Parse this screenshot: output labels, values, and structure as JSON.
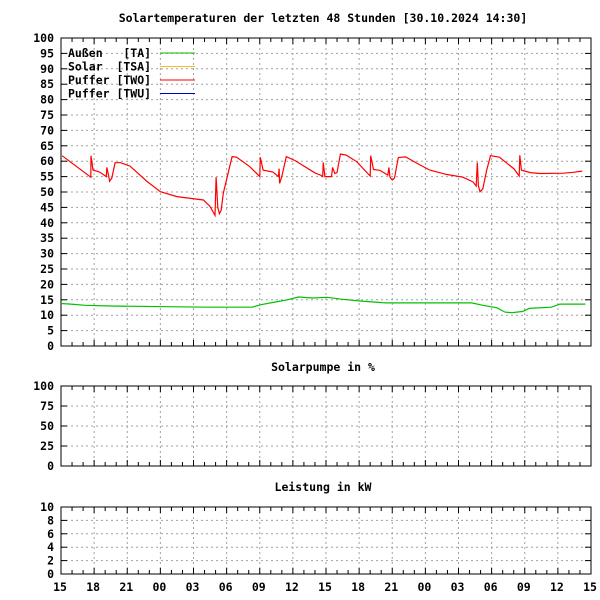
{
  "chart_data": [
    {
      "type": "line",
      "title": "Solartemperaturen der letzten 48 Stunden [30.10.2024 14:30]",
      "xlabel": "",
      "ylabel": "",
      "ylim": [
        0,
        100
      ],
      "yticks": [
        0,
        5,
        10,
        15,
        20,
        25,
        30,
        35,
        40,
        45,
        50,
        55,
        60,
        65,
        70,
        75,
        80,
        85,
        90,
        95,
        100
      ],
      "xlim_hours": [
        0,
        48
      ],
      "xtick_labels": [
        "15",
        "18",
        "21",
        "00",
        "03",
        "06",
        "09",
        "12",
        "15",
        "18",
        "21",
        "00",
        "03",
        "06",
        "09",
        "12",
        "15"
      ],
      "grid": true,
      "legend_position": "top-left",
      "series": [
        {
          "name": "Außen   [TA]",
          "color": "#00c000",
          "points": [
            [
              0,
              13.8
            ],
            [
              0.9,
              13.6
            ],
            [
              2.2,
              13.2
            ],
            [
              4.5,
              13.0
            ],
            [
              13.3,
              12.6
            ],
            [
              17.3,
              12.6
            ],
            [
              18.1,
              13.4
            ],
            [
              19.6,
              14.4
            ],
            [
              20.5,
              15.0
            ],
            [
              21.5,
              15.9
            ],
            [
              22.8,
              15.6
            ],
            [
              24.1,
              15.8
            ],
            [
              25.4,
              15.2
            ],
            [
              27.1,
              14.6
            ],
            [
              29.4,
              14.0
            ],
            [
              36.2,
              14.0
            ],
            [
              37.2,
              14.0
            ],
            [
              38.2,
              13.2
            ],
            [
              39.5,
              12.4
            ],
            [
              40.2,
              11.0
            ],
            [
              40.8,
              10.8
            ],
            [
              41.8,
              11.2
            ],
            [
              42.4,
              12.2
            ],
            [
              44.4,
              12.6
            ],
            [
              45.2,
              13.6
            ],
            [
              47.5,
              13.6
            ]
          ]
        },
        {
          "name": "Solar  [TSA]",
          "color": "#f0c020",
          "points": []
        },
        {
          "name": "Puffer [TWO]",
          "color": "#ff0000",
          "points": [
            [
              0.1,
              61.8
            ],
            [
              2.7,
              54.8
            ],
            [
              2.72,
              61.8
            ],
            [
              2.9,
              57.1
            ],
            [
              3.5,
              56.5
            ],
            [
              4.1,
              55
            ],
            [
              4.15,
              58
            ],
            [
              4.3,
              55.5
            ],
            [
              4.4,
              53.5
            ],
            [
              4.6,
              54.5
            ],
            [
              4.9,
              59.5
            ],
            [
              5.4,
              59.5
            ],
            [
              6.25,
              58.4
            ],
            [
              7.8,
              53.4
            ],
            [
              9.0,
              50.1
            ],
            [
              10.5,
              48.5
            ],
            [
              12.9,
              47.4
            ],
            [
              13.5,
              45.3
            ],
            [
              13.95,
              42.4
            ],
            [
              14.05,
              54.8
            ],
            [
              14.2,
              45
            ],
            [
              14.35,
              43
            ],
            [
              14.5,
              44
            ],
            [
              14.7,
              49.6
            ],
            [
              15.5,
              61.5
            ],
            [
              15.9,
              61.3
            ],
            [
              17.1,
              58.2
            ],
            [
              18.0,
              55
            ],
            [
              18.05,
              61.3
            ],
            [
              18.3,
              57.1
            ],
            [
              19.2,
              56.5
            ],
            [
              19.7,
              55
            ],
            [
              19.75,
              57.6
            ],
            [
              19.8,
              52.8
            ],
            [
              20.0,
              55
            ],
            [
              20.4,
              61.5
            ],
            [
              21.2,
              60.2
            ],
            [
              23.0,
              56.2
            ],
            [
              23.5,
              55.5
            ],
            [
              23.7,
              55
            ],
            [
              23.75,
              59.6
            ],
            [
              23.9,
              55
            ],
            [
              24.5,
              55
            ],
            [
              24.6,
              58
            ],
            [
              24.8,
              56
            ],
            [
              25.0,
              56.3
            ],
            [
              25.3,
              62.3
            ],
            [
              25.8,
              62
            ],
            [
              26.8,
              59.8
            ],
            [
              27.5,
              57.1
            ],
            [
              28.0,
              55.2
            ],
            [
              28.05,
              61.8
            ],
            [
              28.3,
              57.3
            ],
            [
              28.9,
              57
            ],
            [
              29.6,
              55.5
            ],
            [
              29.7,
              58
            ],
            [
              29.8,
              54.8
            ],
            [
              30.0,
              53.9
            ],
            [
              30.2,
              54.5
            ],
            [
              30.55,
              61.2
            ],
            [
              31.2,
              61.4
            ],
            [
              32.5,
              58.8
            ],
            [
              33.4,
              57.1
            ],
            [
              34.9,
              55.7
            ],
            [
              36.4,
              54.8
            ],
            [
              37.3,
              53.3
            ],
            [
              37.6,
              51.9
            ],
            [
              37.7,
              59.6
            ],
            [
              37.8,
              52
            ],
            [
              37.95,
              50.1
            ],
            [
              38.2,
              51
            ],
            [
              38.55,
              57.1
            ],
            [
              38.9,
              61.8
            ],
            [
              39.7,
              61.3
            ],
            [
              41.0,
              57.6
            ],
            [
              41.5,
              55.2
            ],
            [
              41.55,
              61.9
            ],
            [
              41.7,
              57.1
            ],
            [
              42.5,
              56.3
            ],
            [
              43.4,
              56.0
            ],
            [
              45.5,
              56.1
            ],
            [
              46.4,
              56.4
            ],
            [
              47.2,
              56.8
            ]
          ]
        },
        {
          "name": "Puffer [TWU]",
          "color": "#0000c0",
          "points": []
        }
      ]
    },
    {
      "type": "line",
      "title": "Solarpumpe in %",
      "ylim": [
        0,
        100
      ],
      "yticks": [
        0,
        25,
        50,
        75,
        100
      ],
      "xlim_hours": [
        0,
        48
      ],
      "grid": true,
      "series": []
    },
    {
      "type": "line",
      "title": "Leistung in kW",
      "ylim": [
        0,
        10
      ],
      "yticks": [
        0,
        2,
        4,
        6,
        8,
        10
      ],
      "xlim_hours": [
        0,
        48
      ],
      "xtick_labels": [
        "15",
        "18",
        "21",
        "00",
        "03",
        "06",
        "09",
        "12",
        "15",
        "18",
        "21",
        "00",
        "03",
        "06",
        "09",
        "12",
        "15"
      ],
      "grid": true,
      "series": []
    }
  ]
}
